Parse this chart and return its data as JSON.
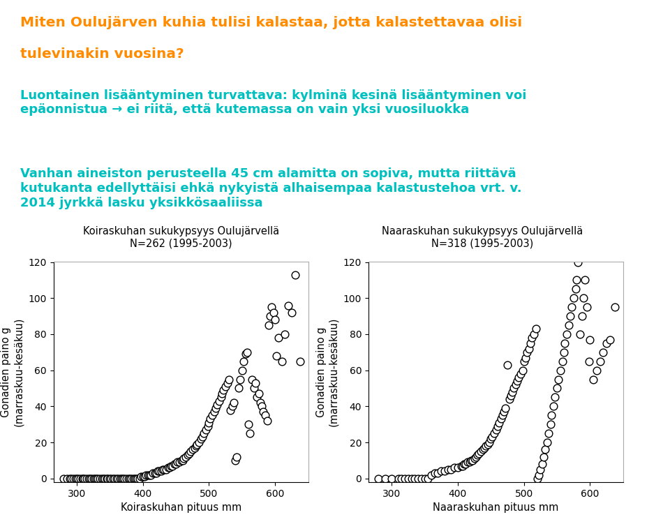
{
  "title_line1": "Miten Oulujärven kuhia tulisi kalastaa, jotta kalastettavaa olisi",
  "title_line2": "tulevinakin vuosina?",
  "title_color": "#FF8C00",
  "body_text1": "Luontainen lisääntyminen turvattava: kylminä kesinä lisääntyminen voi\nepäonnistua → ei riitä, että kutemassa on vain yksi vuosiluokka",
  "body_text2": "Vanhan aineiston perusteella 45 cm alamitta on sopiva, mutta riittävä\nkutukanta edellyttäisi ehkä nykyistä alhaisempaa kalastustehoa vrt. v.\n2014 jyrkkä lasku yksikkösaaliissa",
  "body_color": "#00BFBF",
  "plot1_title": "Koiraskuhan sukukypsyys Oulujärvellä\nN=262 (1995-2003)",
  "plot2_title": "Naaraskuhan sukukypsyys Oulujärvellä\nN=318 (1995-2003)",
  "plot1_xlabel": "Koiraskuhan pituus mm",
  "plot2_xlabel": "Naaraskuhan pituus mm",
  "ylabel": "Gonadien paino g\n(marraskuu-kesäkuu)",
  "xlim": [
    265,
    650
  ],
  "ylim": [
    -2,
    120
  ],
  "xticks": [
    300,
    400,
    500,
    600
  ],
  "yticks": [
    0,
    20,
    40,
    60,
    80,
    100,
    120
  ],
  "marker_color": "white",
  "marker_edgecolor": "black",
  "marker_size": 60,
  "background_color": "white",
  "plot_face_color": "white",
  "male_x": [
    280,
    285,
    290,
    292,
    295,
    298,
    300,
    302,
    305,
    308,
    310,
    312,
    315,
    318,
    320,
    322,
    325,
    328,
    330,
    332,
    335,
    338,
    340,
    342,
    345,
    347,
    350,
    352,
    355,
    357,
    360,
    362,
    365,
    368,
    370,
    372,
    375,
    378,
    380,
    382,
    385,
    388,
    390,
    392,
    395,
    397,
    400,
    402,
    405,
    408,
    410,
    412,
    415,
    418,
    420,
    422,
    425,
    428,
    430,
    432,
    435,
    438,
    440,
    442,
    445,
    448,
    450,
    452,
    455,
    458,
    460,
    462,
    465,
    468,
    470,
    472,
    475,
    478,
    480,
    482,
    485,
    488,
    490,
    492,
    495,
    498,
    500,
    502,
    505,
    508,
    510,
    512,
    515,
    518,
    520,
    522,
    525,
    528,
    530,
    532,
    535,
    537,
    540,
    542,
    545,
    547,
    550,
    552,
    555,
    558,
    560,
    562,
    565,
    568,
    570,
    572,
    575,
    578,
    580,
    582,
    585,
    588,
    590,
    592,
    595,
    598,
    600,
    602,
    605,
    610,
    615,
    620,
    625,
    630,
    638
  ],
  "male_y": [
    0,
    0,
    0,
    0,
    0,
    0,
    0,
    0,
    0,
    0,
    0,
    0,
    0,
    0,
    0,
    0,
    0,
    0,
    0,
    0,
    0,
    0,
    0,
    0,
    0,
    0,
    0,
    0,
    0,
    0,
    0,
    0,
    0,
    0,
    0,
    0,
    0,
    0,
    0,
    0,
    0,
    0,
    0,
    0,
    0,
    1,
    1,
    1,
    2,
    2,
    2,
    2,
    3,
    3,
    3,
    4,
    4,
    4,
    5,
    5,
    5,
    6,
    6,
    7,
    7,
    8,
    8,
    9,
    9,
    10,
    10,
    11,
    12,
    13,
    14,
    15,
    16,
    17,
    18,
    19,
    20,
    22,
    23,
    25,
    27,
    29,
    31,
    33,
    35,
    37,
    39,
    41,
    43,
    45,
    47,
    49,
    51,
    53,
    55,
    38,
    40,
    42,
    10,
    12,
    50,
    55,
    60,
    65,
    69,
    70,
    30,
    25,
    55,
    50,
    53,
    45,
    47,
    42,
    40,
    37,
    35,
    32,
    85,
    90,
    95,
    92,
    88,
    68,
    78,
    65,
    80,
    96,
    92,
    113,
    65
  ],
  "female_x": [
    280,
    290,
    300,
    310,
    315,
    320,
    325,
    330,
    335,
    340,
    345,
    350,
    355,
    360,
    365,
    370,
    375,
    380,
    385,
    390,
    395,
    400,
    405,
    408,
    410,
    412,
    415,
    418,
    420,
    422,
    425,
    428,
    430,
    432,
    435,
    438,
    440,
    442,
    445,
    448,
    450,
    452,
    455,
    458,
    460,
    462,
    465,
    468,
    470,
    472,
    475,
    478,
    480,
    482,
    485,
    488,
    490,
    492,
    495,
    498,
    500,
    502,
    505,
    508,
    510,
    512,
    515,
    518,
    520,
    522,
    525,
    528,
    530,
    532,
    535,
    537,
    540,
    542,
    545,
    547,
    550,
    552,
    555,
    558,
    560,
    562,
    565,
    568,
    570,
    572,
    575,
    578,
    580,
    582,
    585,
    588,
    590,
    592,
    595,
    598,
    600,
    605,
    610,
    615,
    620,
    625,
    630,
    638
  ],
  "female_y": [
    0,
    0,
    0,
    0,
    0,
    0,
    0,
    0,
    0,
    0,
    0,
    0,
    0,
    2,
    3,
    3,
    4,
    4,
    5,
    5,
    6,
    6,
    7,
    7,
    8,
    8,
    9,
    9,
    10,
    10,
    11,
    12,
    13,
    14,
    15,
    16,
    17,
    18,
    19,
    20,
    22,
    23,
    25,
    27,
    29,
    31,
    33,
    35,
    37,
    39,
    63,
    44,
    46,
    48,
    50,
    52,
    54,
    56,
    58,
    60,
    65,
    67,
    70,
    72,
    75,
    78,
    80,
    83,
    0,
    2,
    5,
    8,
    12,
    16,
    20,
    25,
    30,
    35,
    40,
    45,
    50,
    55,
    60,
    65,
    70,
    75,
    80,
    85,
    90,
    95,
    100,
    105,
    110,
    120,
    80,
    90,
    100,
    110,
    95,
    65,
    77,
    55,
    60,
    65,
    70,
    75,
    77,
    95
  ]
}
